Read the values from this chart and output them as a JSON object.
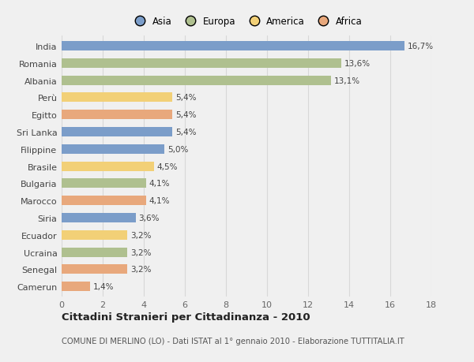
{
  "categories": [
    "India",
    "Romania",
    "Albania",
    "Perù",
    "Egitto",
    "Sri Lanka",
    "Filippine",
    "Brasile",
    "Bulgaria",
    "Marocco",
    "Siria",
    "Ecuador",
    "Ucraina",
    "Senegal",
    "Camerun"
  ],
  "values": [
    16.7,
    13.6,
    13.1,
    5.4,
    5.4,
    5.4,
    5.0,
    4.5,
    4.1,
    4.1,
    3.6,
    3.2,
    3.2,
    3.2,
    1.4
  ],
  "labels": [
    "16,7%",
    "13,6%",
    "13,1%",
    "5,4%",
    "5,4%",
    "5,4%",
    "5,0%",
    "4,5%",
    "4,1%",
    "4,1%",
    "3,6%",
    "3,2%",
    "3,2%",
    "3,2%",
    "1,4%"
  ],
  "colors": [
    "#7b9dc9",
    "#afc08f",
    "#afc08f",
    "#f2d077",
    "#e8a87c",
    "#7b9dc9",
    "#7b9dc9",
    "#f2d077",
    "#afc08f",
    "#e8a87c",
    "#7b9dc9",
    "#f2d077",
    "#afc08f",
    "#e8a87c",
    "#e8a87c"
  ],
  "regions": [
    "Asia",
    "Europa",
    "America",
    "Africa"
  ],
  "region_colors": [
    "#7b9dc9",
    "#afc08f",
    "#f2d077",
    "#e8a87c"
  ],
  "title": "Cittadini Stranieri per Cittadinanza - 2010",
  "subtitle": "COMUNE DI MERLINO (LO) - Dati ISTAT al 1° gennaio 2010 - Elaborazione TUTTITALIA.IT",
  "xlim": [
    0,
    18
  ],
  "xticks": [
    0,
    2,
    4,
    6,
    8,
    10,
    12,
    14,
    16,
    18
  ],
  "background_color": "#f0f0f0",
  "plot_bg_color": "#f0f0f0",
  "grid_color": "#d8d8d8",
  "bar_height": 0.55
}
